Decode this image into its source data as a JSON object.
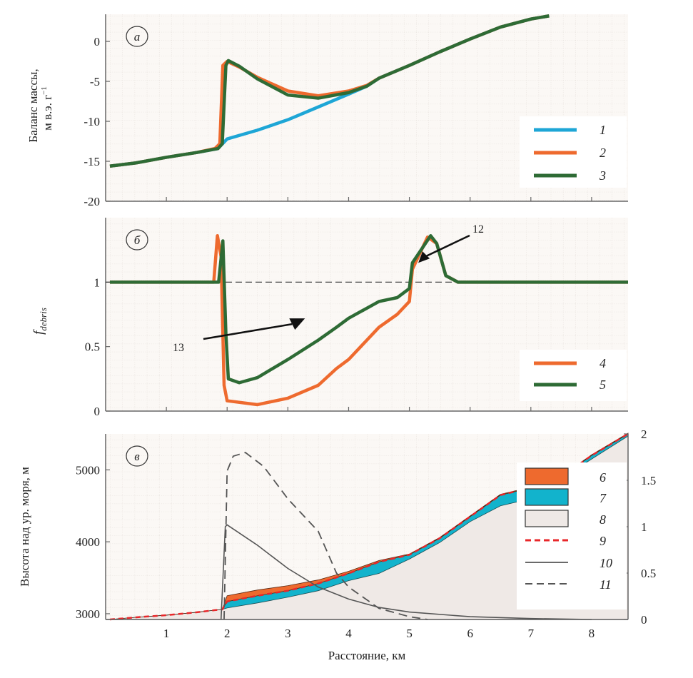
{
  "chart_data": [
    {
      "type": "line",
      "panel_label": "а",
      "ylabel_line1": "Баланс массы,",
      "ylabel_line2": "м в.э. г",
      "ylabel_sup": "−1",
      "xlim": [
        0,
        8.6
      ],
      "ylim": [
        -20,
        3.4
      ],
      "yticks": [
        0,
        -5,
        -10,
        -15,
        -20
      ],
      "ytick_labels": [
        "0",
        "-5",
        "-10",
        "-15",
        "-20"
      ],
      "grid": true,
      "legend_placement": "right",
      "series": [
        {
          "name": "1",
          "color": "#1ea6d6",
          "x": [
            0.07,
            0.5,
            1,
            1.5,
            1.85,
            2,
            2.5,
            3,
            3.5,
            4,
            4.3,
            4.5,
            5,
            5.5,
            6,
            6.5,
            7,
            7.3
          ],
          "y": [
            -15.6,
            -15.2,
            -14.5,
            -13.9,
            -13.4,
            -12.2,
            -11.1,
            -9.8,
            -8.2,
            -6.6,
            -5.6,
            -4.6,
            -3,
            -1.3,
            0.3,
            1.8,
            2.8,
            3.2
          ]
        },
        {
          "name": "2",
          "color": "#ee6a2e",
          "x": [
            0.07,
            0.5,
            1,
            1.5,
            1.8,
            1.88,
            1.93,
            2,
            2.2,
            2.5,
            3,
            3.5,
            4,
            4.3,
            4.5,
            5,
            5.5,
            6,
            6.5,
            7,
            7.3
          ],
          "y": [
            -15.6,
            -15.2,
            -14.5,
            -13.9,
            -13.4,
            -12.8,
            -3,
            -2.5,
            -3.2,
            -4.5,
            -6.2,
            -6.8,
            -6.2,
            -5.5,
            -4.6,
            -3,
            -1.3,
            0.3,
            1.8,
            2.8,
            3.2
          ]
        },
        {
          "name": "3",
          "color": "#2e6b35",
          "x": [
            0.07,
            0.5,
            1,
            1.5,
            1.85,
            1.92,
            1.98,
            2.02,
            2.2,
            2.5,
            3,
            3.5,
            4,
            4.3,
            4.5,
            5,
            5.5,
            6,
            6.5,
            7,
            7.3
          ],
          "y": [
            -15.6,
            -15.2,
            -14.5,
            -13.9,
            -13.4,
            -12.8,
            -3,
            -2.4,
            -3.1,
            -4.7,
            -6.7,
            -7.1,
            -6.4,
            -5.6,
            -4.6,
            -3,
            -1.3,
            0.3,
            1.8,
            2.8,
            3.2
          ]
        }
      ]
    },
    {
      "type": "line",
      "panel_label": "б",
      "ylabel_main": "f",
      "ylabel_sub": "debris",
      "xlim": [
        0,
        8.6
      ],
      "ylim": [
        0,
        1.5
      ],
      "yticks": [
        1,
        0.5,
        0
      ],
      "ytick_labels": [
        "1",
        "0.5",
        "0"
      ],
      "reference_line": 1,
      "grid": true,
      "legend_placement": "bottom-right",
      "annotations": [
        {
          "text": "12",
          "x": 5.1,
          "y": 1.15
        },
        {
          "text": "13",
          "x": 2.6,
          "y": 0.73
        }
      ],
      "series": [
        {
          "name": "4",
          "color": "#ee6a2e",
          "x": [
            0.07,
            1.78,
            1.84,
            1.9,
            1.95,
            2.0,
            2.5,
            3,
            3.5,
            3.8,
            4,
            4.5,
            4.8,
            5.0,
            5.05,
            5.3,
            5.45,
            5.6,
            5.8,
            8.6
          ],
          "y": [
            1,
            1,
            1.36,
            1.2,
            0.2,
            0.08,
            0.05,
            0.1,
            0.2,
            0.33,
            0.4,
            0.65,
            0.75,
            0.85,
            1.1,
            1.35,
            1.3,
            1.05,
            1.0,
            1
          ]
        },
        {
          "name": "5",
          "color": "#2e6b35",
          "x": [
            0.07,
            1.86,
            1.93,
            1.98,
            2.02,
            2.2,
            2.5,
            3,
            3.5,
            3.8,
            4,
            4.5,
            4.8,
            5.0,
            5.05,
            5.35,
            5.45,
            5.6,
            5.8,
            8.6
          ],
          "y": [
            1,
            1,
            1.32,
            0.6,
            0.25,
            0.22,
            0.26,
            0.4,
            0.55,
            0.65,
            0.72,
            0.85,
            0.88,
            0.95,
            1.15,
            1.36,
            1.3,
            1.05,
            1.0,
            1
          ]
        }
      ]
    },
    {
      "type": "area",
      "panel_label": "в",
      "xlabel": "Расстояние, км",
      "ylabel": "Высота над ур. моря, м",
      "xlim": [
        0,
        8.6
      ],
      "xticks": [
        1,
        2,
        3,
        4,
        5,
        6,
        7,
        8
      ],
      "xtick_labels": [
        "1",
        "2",
        "3",
        "4",
        "5",
        "6",
        "7",
        "8"
      ],
      "ylim": [
        2920,
        5500
      ],
      "yticks": [
        5000,
        4000,
        3000
      ],
      "ytick_labels": [
        "5000",
        "4000",
        "3000"
      ],
      "y2lim": [
        0,
        2
      ],
      "y2ticks": [
        2,
        1.5,
        1,
        0.5,
        0
      ],
      "y2tick_labels": [
        "2",
        "1.5",
        "1",
        "0.5",
        "0"
      ],
      "grid": true,
      "legend_placement": "right",
      "x": [
        0.07,
        0.5,
        1,
        1.5,
        1.8,
        1.92,
        2,
        2.5,
        3,
        3.5,
        4,
        4.5,
        5,
        5.5,
        6,
        6.5,
        7,
        7.5,
        8,
        8.6
      ],
      "series": [
        {
          "name": "6",
          "color": "#ee6a2e",
          "kind": "band-top",
          "y": [
            2920,
            2950,
            2980,
            3020,
            3050,
            3060,
            3250,
            3330,
            3390,
            3470,
            3590,
            3740,
            3830,
            4060,
            4360,
            4660,
            4760,
            4910,
            5210,
            5510
          ]
        },
        {
          "name": "7",
          "color": "#12b3cc",
          "kind": "band-bottom",
          "y": [
            2920,
            2950,
            2980,
            3020,
            3050,
            3060,
            3080,
            3150,
            3230,
            3320,
            3460,
            3560,
            3760,
            3990,
            4280,
            4500,
            4600,
            4880,
            5150,
            5470
          ]
        },
        {
          "name": "8",
          "color": "#efe9e6",
          "kind": "terrain"
        },
        {
          "name": "9",
          "color": "#e8272a",
          "kind": "dashed-surface",
          "y": [
            2920,
            2950,
            2980,
            3020,
            3050,
            3060,
            3170,
            3250,
            3320,
            3420,
            3560,
            3720,
            3820,
            4050,
            4350,
            4650,
            4750,
            4900,
            5200,
            5500
          ]
        },
        {
          "name": "10",
          "color": "#555555",
          "kind": "line-right-axis",
          "x": [
            1.9,
            1.97,
            2.0,
            2.5,
            3,
            3.5,
            4,
            4.5,
            5,
            6,
            7,
            8
          ],
          "y": [
            0,
            1.0,
            1.02,
            0.8,
            0.55,
            0.35,
            0.22,
            0.13,
            0.08,
            0.03,
            0.01,
            0
          ]
        },
        {
          "name": "11",
          "color": "#555555",
          "kind": "dashed-right-axis",
          "x": [
            1.95,
            2.0,
            2.1,
            2.3,
            2.6,
            3,
            3.5,
            3.8,
            4,
            4.5,
            5,
            5.3
          ],
          "y": [
            0,
            1.6,
            1.76,
            1.8,
            1.65,
            1.3,
            0.95,
            0.5,
            0.35,
            0.12,
            0.03,
            0
          ]
        }
      ]
    }
  ]
}
